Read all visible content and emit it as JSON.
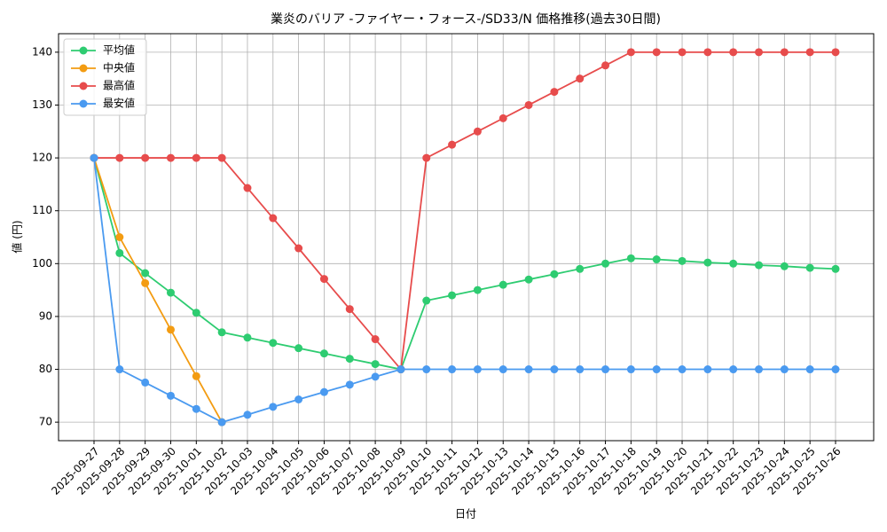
{
  "chart_data": {
    "type": "line",
    "title": "業炎のバリア -ファイヤー・フォース-/SD33/N 価格推移(過去30日間)",
    "x_label": "日付",
    "y_label": "値 (円)",
    "categories": [
      "2025-09-27",
      "2025-09-28",
      "2025-09-29",
      "2025-09-30",
      "2025-10-01",
      "2025-10-02",
      "2025-10-03",
      "2025-10-04",
      "2025-10-05",
      "2025-10-06",
      "2025-10-07",
      "2025-10-08",
      "2025-10-09",
      "2025-10-10",
      "2025-10-11",
      "2025-10-12",
      "2025-10-13",
      "2025-10-14",
      "2025-10-15",
      "2025-10-16",
      "2025-10-17",
      "2025-10-18",
      "2025-10-19",
      "2025-10-20",
      "2025-10-21",
      "2025-10-22",
      "2025-10-23",
      "2025-10-24",
      "2025-10-25",
      "2025-10-26"
    ],
    "series": [
      {
        "name": "平均値",
        "color": "#2ecc71",
        "values": [
          120,
          102,
          98.2,
          94.5,
          90.7,
          87,
          86,
          85,
          84,
          83,
          82,
          81,
          80,
          93,
          94,
          95,
          96,
          97,
          98,
          99,
          100,
          101,
          100.8,
          100.5,
          100.2,
          100,
          99.7,
          99.5,
          99.2,
          99
        ]
      },
      {
        "name": "中央値",
        "color": "#f39c12",
        "values": [
          120,
          105,
          96.3,
          87.5,
          78.7,
          70,
          null,
          null,
          null,
          null,
          null,
          null,
          null,
          null,
          null,
          null,
          null,
          null,
          null,
          null,
          null,
          null,
          null,
          null,
          null,
          null,
          null,
          null,
          null,
          null
        ]
      },
      {
        "name": "最高値",
        "color": "#e74c4c",
        "values": [
          120,
          120,
          120,
          120,
          120,
          120,
          114.3,
          108.6,
          102.9,
          97.1,
          91.4,
          85.7,
          80,
          120,
          122.5,
          125,
          127.5,
          130,
          132.5,
          135,
          137.5,
          140,
          140,
          140,
          140,
          140,
          140,
          140,
          140,
          140
        ]
      },
      {
        "name": "最安値",
        "color": "#4a9af0",
        "values": [
          120,
          80,
          77.5,
          75,
          72.5,
          70,
          71.4,
          72.9,
          74.3,
          75.7,
          77.1,
          78.6,
          80,
          80,
          80,
          80,
          80,
          80,
          80,
          80,
          80,
          80,
          80,
          80,
          80,
          80,
          80,
          80,
          80,
          80
        ]
      }
    ],
    "ylim": [
      66.5,
      143.5
    ],
    "yticks": [
      70,
      80,
      90,
      100,
      110,
      120,
      130,
      140
    ],
    "grid": true,
    "legend": "upper left"
  }
}
